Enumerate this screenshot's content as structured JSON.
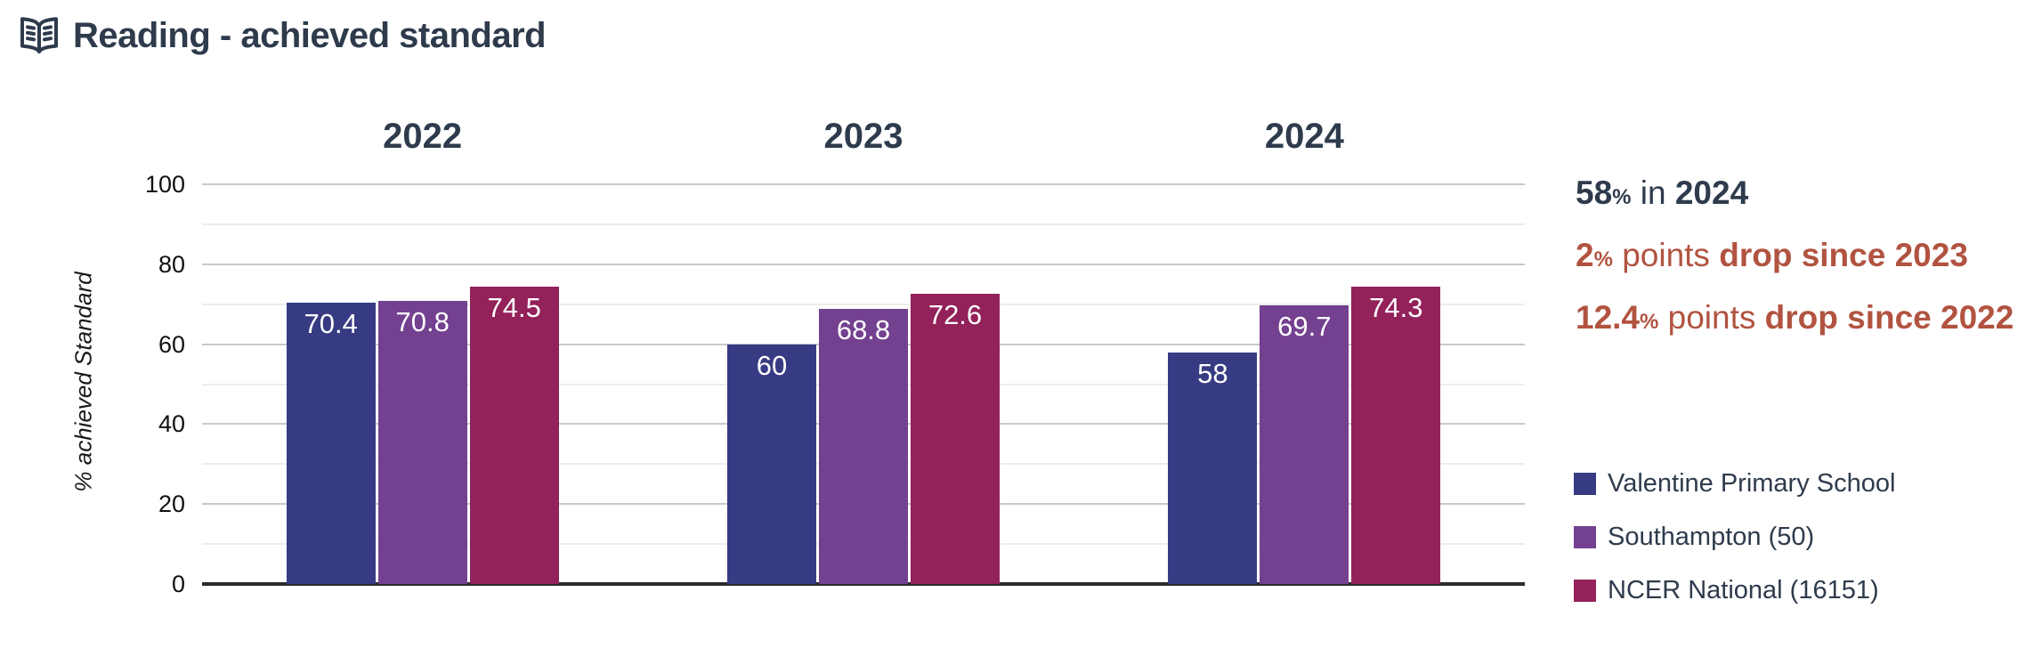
{
  "header": {
    "title": "Reading - achieved standard",
    "icon": "open-book-icon"
  },
  "summary": {
    "line1": {
      "value": "58",
      "pct": "%",
      "mid": " in ",
      "tail": "2024"
    },
    "line2": {
      "value": "2",
      "pct": "%",
      "mid": " points ",
      "tail": "drop since 2023"
    },
    "line3": {
      "value": "12.4",
      "pct": "%",
      "mid": " points ",
      "tail": "drop since 2022"
    }
  },
  "colors": {
    "dark_text": "#2E3B4C",
    "accent_red": "#B15340",
    "axis_line": "#2b2b2b",
    "major_gridline": "#c9c9c9",
    "minor_gridline": "#ececec",
    "bar_label_text": "#ffffff"
  },
  "chart_data": {
    "type": "bar",
    "title": "Reading - achieved standard",
    "xlabel": "",
    "ylabel": "% achieved Standard",
    "ylim": [
      0,
      100
    ],
    "yticks": [
      0,
      20,
      40,
      60,
      80,
      100
    ],
    "minor_gridlines": [
      10,
      30,
      50,
      70,
      90
    ],
    "grid": true,
    "legend_position": "right",
    "categories": [
      "2022",
      "2023",
      "2024"
    ],
    "series": [
      {
        "name": "Valentine Primary School",
        "color": "#373B83",
        "values": [
          70.4,
          60,
          58
        ],
        "labels": [
          "70.4",
          "60",
          "58"
        ]
      },
      {
        "name": "Southampton (50)",
        "color": "#744090",
        "values": [
          70.8,
          68.8,
          69.7
        ],
        "labels": [
          "70.8",
          "68.8",
          "69.7"
        ]
      },
      {
        "name": "NCER National (16151)",
        "color": "#93215A",
        "values": [
          74.5,
          72.6,
          74.3
        ],
        "labels": [
          "74.5",
          "72.6",
          "74.3"
        ]
      }
    ]
  }
}
